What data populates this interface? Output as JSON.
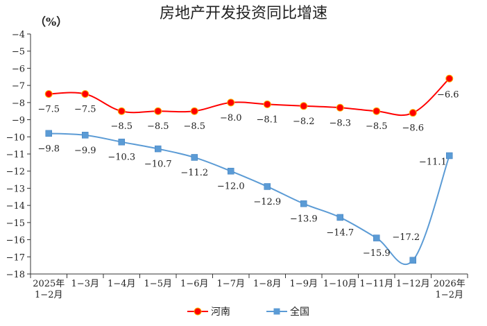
{
  "chart_data": {
    "type": "line",
    "title": "房地产开发投资同比增速",
    "unit_label": "（%）",
    "ylim": [
      -18,
      -4
    ],
    "y_ticks": [
      -4,
      -5,
      -6,
      -7,
      -8,
      -9,
      -10,
      -11,
      -12,
      -13,
      -14,
      -15,
      -16,
      -17,
      -18
    ],
    "y_tick_labels": [
      "−4",
      "−5",
      "−6",
      "−7",
      "−8",
      "−9",
      "−10",
      "−11",
      "−12",
      "−13",
      "−14",
      "−15",
      "−16",
      "−17",
      "−18"
    ],
    "categories": [
      [
        "2025年",
        "1−2月"
      ],
      [
        "1−3月"
      ],
      [
        "1−4月"
      ],
      [
        "1−5月"
      ],
      [
        "1−6月"
      ],
      [
        "1−7月"
      ],
      [
        "1−8月"
      ],
      [
        "1−9月"
      ],
      [
        "1−10月"
      ],
      [
        "1−11月"
      ],
      [
        "1−12月"
      ],
      [
        "2026年",
        "1−2月"
      ]
    ],
    "grid": false,
    "legend_position": "bottom-center",
    "series": [
      {
        "name": "河南",
        "color": "#ff0000",
        "marker": "circle",
        "values": [
          -7.5,
          -7.5,
          -8.5,
          -8.5,
          -8.5,
          -8.0,
          -8.1,
          -8.2,
          -8.3,
          -8.5,
          -8.6,
          -6.6
        ],
        "labels": [
          "−7.5",
          "−7.5",
          "−8.5",
          "−8.5",
          "−8.5",
          "−8.0",
          "−8.1",
          "−8.2",
          "−8.3",
          "−8.5",
          "−8.6",
          "−6.6"
        ]
      },
      {
        "name": "全国",
        "color": "#5b9bd5",
        "marker": "square",
        "values": [
          -9.8,
          -9.9,
          -10.3,
          -10.7,
          -11.2,
          -12.0,
          -12.9,
          -13.9,
          -14.7,
          -15.9,
          -17.2,
          -11.1
        ],
        "labels": [
          "−9.8",
          "−9.9",
          "−10.3",
          "−10.7",
          "−11.2",
          "−12.0",
          "−12.9",
          "−13.9",
          "−14.7",
          "−15.9",
          "−17.2",
          "−11.1"
        ]
      }
    ]
  }
}
